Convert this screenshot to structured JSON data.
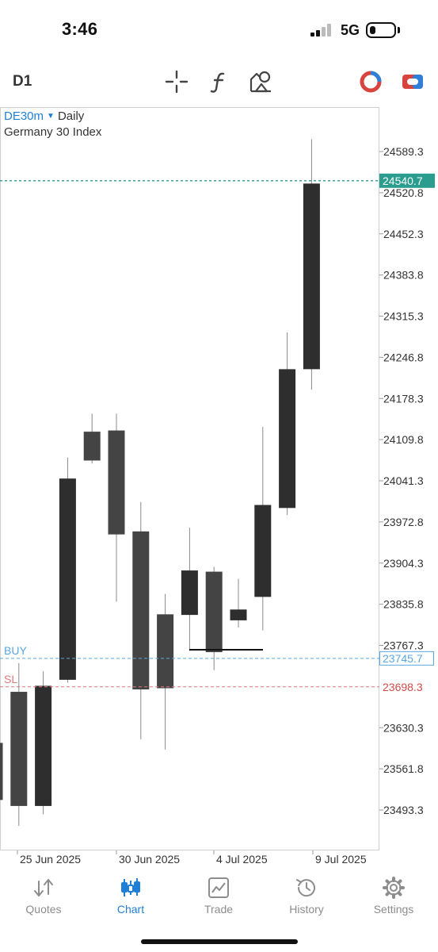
{
  "status_bar": {
    "time": "3:46",
    "network": "5G"
  },
  "toolbar": {
    "timeframe": "D1",
    "icons": [
      "crosshair-icon",
      "function-icon",
      "objects-icon",
      "color-theme-icon",
      "trade-toggle-icon"
    ]
  },
  "chart": {
    "symbol": "DE30m",
    "timeframe": "Daily",
    "description": "Germany 30 Index",
    "price_labels": [
      "24589.3",
      "24520.8",
      "24452.3",
      "24383.8",
      "24315.3",
      "24246.8",
      "24178.3",
      "24109.8",
      "24041.3",
      "23972.8",
      "23904.3",
      "23835.8",
      "23767.3",
      "23698.3",
      "23630.3",
      "23561.8",
      "23493.3"
    ],
    "bid_label": "24540.7",
    "buy_label": "BUY",
    "buy_price": "23745.7",
    "sl_label": "SL",
    "sl_price": "23698.3",
    "date_labels": [
      "25 Jun 2025",
      "30 Jun 2025",
      "4 Jul 2025",
      "9 Jul 2025"
    ],
    "colors": {
      "candle": "#333333",
      "bid_line": "#2a9d8f",
      "buy": "#5aa7e0",
      "sl": "#e07878",
      "label_bg": "#2a9d8f"
    }
  },
  "chart_data": {
    "type": "candlestick",
    "title": "DE30m Daily",
    "subtitle": "Germany 30 Index",
    "candles": [
      {
        "open": 23605,
        "high": 23628,
        "low": 23460,
        "close": 23510
      },
      {
        "open": 23690,
        "high": 23738,
        "low": 23467,
        "close": 23500
      },
      {
        "open": 23500,
        "high": 23724,
        "low": 23486,
        "close": 23700
      },
      {
        "open": 23710,
        "high": 24080,
        "low": 23705,
        "close": 24045
      },
      {
        "open": 24123,
        "high": 24153,
        "low": 24070,
        "close": 24075
      },
      {
        "open": 24125,
        "high": 24153,
        "low": 23840,
        "close": 23952
      },
      {
        "open": 23957,
        "high": 24006,
        "low": 23611,
        "close": 23694
      },
      {
        "open": 23819,
        "high": 23853,
        "low": 23594,
        "close": 23696
      },
      {
        "open": 23818,
        "high": 23963,
        "low": 23758,
        "close": 23892
      },
      {
        "open": 23890,
        "high": 23898,
        "low": 23726,
        "close": 23756
      },
      {
        "open": 23809,
        "high": 23878,
        "low": 23797,
        "close": 23827
      },
      {
        "open": 23848,
        "high": 24131,
        "low": 23792,
        "close": 24001
      },
      {
        "open": 23996,
        "high": 24288,
        "low": 23984,
        "close": 24227
      },
      {
        "open": 24227,
        "high": 24610,
        "low": 24193,
        "close": 24536
      }
    ],
    "ylim": [
      23440,
      24650
    ],
    "bid": 24540.7,
    "buy": 23745.7,
    "sl": 23698.3
  },
  "bottom_nav": {
    "items": [
      {
        "label": "Quotes",
        "icon": "quotes-arrows-icon"
      },
      {
        "label": "Chart",
        "icon": "chart-candles-icon"
      },
      {
        "label": "Trade",
        "icon": "trade-chart-icon"
      },
      {
        "label": "History",
        "icon": "history-clock-icon"
      },
      {
        "label": "Settings",
        "icon": "settings-gear-icon"
      }
    ],
    "active": "Chart"
  }
}
